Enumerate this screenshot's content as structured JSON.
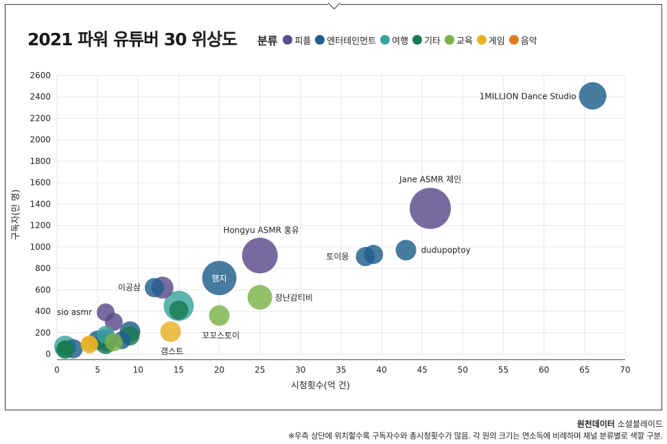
{
  "title": "2021 파워 유튜버 30 위상도",
  "legend_title": "분류",
  "footer": {
    "source_bold": "원천데이터",
    "source_rest": " 소셜블레이드",
    "note": "※우측 상단에 위치할수록 구독자수와 총시청횟수가 많음. 각 원의 크기는 연소득에 비례하며 채널 분류별로 색깔 구분."
  },
  "chart_data": {
    "type": "scatter",
    "title": "2021 파워 유튜버 30 위상도",
    "xlabel": "시청횟수(억 건)",
    "ylabel": "구독자(만 명)",
    "xlim": [
      0,
      70
    ],
    "ylim": [
      0,
      2600
    ],
    "xticks": [
      0,
      5,
      10,
      15,
      20,
      25,
      30,
      35,
      40,
      45,
      50,
      55,
      60,
      65,
      70
    ],
    "yticks": [
      0,
      200,
      400,
      600,
      800,
      1000,
      1200,
      1400,
      1600,
      1800,
      2000,
      2200,
      2400,
      2600
    ],
    "grid": true,
    "legend_position": "top",
    "categories": [
      {
        "name": "피플",
        "color": "#5b4b8a"
      },
      {
        "name": "엔터테인먼트",
        "color": "#1f5f8b"
      },
      {
        "name": "여행",
        "color": "#3aa39d"
      },
      {
        "name": "기타",
        "color": "#1a7a50"
      },
      {
        "name": "교육",
        "color": "#7cb248"
      },
      {
        "name": "게임",
        "color": "#e8b125"
      },
      {
        "name": "음악",
        "color": "#e07a1a"
      }
    ],
    "points": [
      {
        "x": 66,
        "y": 2410,
        "size": 20,
        "category": "엔터테인먼트",
        "label": "1MILLION Dance Studio"
      },
      {
        "x": 46,
        "y": 1360,
        "size": 30,
        "category": "피플",
        "label": "Jane ASMR 제인"
      },
      {
        "x": 43,
        "y": 970,
        "size": 15,
        "category": "엔터테인먼트",
        "label": "dudupoptoy"
      },
      {
        "x": 39,
        "y": 930,
        "size": 14,
        "category": "엔터테인먼트",
        "label": ""
      },
      {
        "x": 38,
        "y": 910,
        "size": 14,
        "category": "엔터테인먼트",
        "label": "토이몽"
      },
      {
        "x": 25,
        "y": 920,
        "size": 26,
        "category": "피플",
        "label": "Hongyu ASMR 홍유"
      },
      {
        "x": 20,
        "y": 710,
        "size": 25,
        "category": "엔터테인먼트",
        "label": "햄지"
      },
      {
        "x": 25,
        "y": 530,
        "size": 18,
        "category": "교육",
        "label": "장난감티비"
      },
      {
        "x": 13,
        "y": 620,
        "size": 16,
        "category": "피플",
        "label": ""
      },
      {
        "x": 12,
        "y": 620,
        "size": 14,
        "category": "엔터테인먼트",
        "label": "이공삼"
      },
      {
        "x": 15,
        "y": 450,
        "size": 22,
        "category": "여행",
        "label": ""
      },
      {
        "x": 15,
        "y": 410,
        "size": 14,
        "category": "기타",
        "label": ""
      },
      {
        "x": 20,
        "y": 360,
        "size": 15,
        "category": "교육",
        "label": "꼬꼬스토이"
      },
      {
        "x": 14,
        "y": 210,
        "size": 15,
        "category": "게임",
        "label": "갬스트"
      },
      {
        "x": 6,
        "y": 390,
        "size": 13,
        "category": "피플",
        "label": "sio asmr"
      },
      {
        "x": 7,
        "y": 300,
        "size": 13,
        "category": "피플",
        "label": ""
      },
      {
        "x": 9,
        "y": 210,
        "size": 15,
        "category": "엔터테인먼트",
        "label": ""
      },
      {
        "x": 9,
        "y": 170,
        "size": 14,
        "category": "기타",
        "label": ""
      },
      {
        "x": 8,
        "y": 130,
        "size": 13,
        "category": "엔터테인먼트",
        "label": ""
      },
      {
        "x": 6,
        "y": 180,
        "size": 13,
        "category": "여행",
        "label": ""
      },
      {
        "x": 5,
        "y": 130,
        "size": 14,
        "category": "엔터테인먼트",
        "label": ""
      },
      {
        "x": 6,
        "y": 90,
        "size": 14,
        "category": "기타",
        "label": ""
      },
      {
        "x": 7,
        "y": 110,
        "size": 13,
        "category": "교육",
        "label": ""
      },
      {
        "x": 6,
        "y": 130,
        "size": 16,
        "category": "피플",
        "label": ""
      },
      {
        "x": 4,
        "y": 90,
        "size": 13,
        "category": "게임",
        "label": ""
      },
      {
        "x": 2,
        "y": 50,
        "size": 14,
        "category": "엔터테인먼트",
        "label": ""
      },
      {
        "x": 1,
        "y": 70,
        "size": 16,
        "category": "여행",
        "label": ""
      },
      {
        "x": 1,
        "y": 40,
        "size": 13,
        "category": "기타",
        "label": ""
      },
      {
        "x": 1,
        "y": 60,
        "size": 11,
        "category": "기타",
        "label": ""
      },
      {
        "x": 4,
        "y": 100,
        "size": 11,
        "category": "게임",
        "label": ""
      }
    ]
  }
}
